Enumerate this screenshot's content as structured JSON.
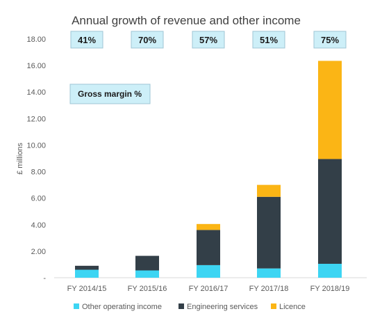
{
  "chart_data": {
    "type": "bar",
    "stacked": true,
    "title": "Annual growth of revenue and other income",
    "ylabel": "£ millions",
    "xlabel": "",
    "ylim": [
      0,
      18
    ],
    "yticks": [
      0,
      2,
      4,
      6,
      8,
      10,
      12,
      14,
      16,
      18
    ],
    "ytick_labels": [
      "-",
      "2.00",
      "4.00",
      "6.00",
      "8.00",
      "10.00",
      "12.00",
      "14.00",
      "16.00",
      "18.00"
    ],
    "categories": [
      "FY 2014/15",
      "FY 2015/16",
      "FY 2016/17",
      "FY 2017/18",
      "FY 2018/19"
    ],
    "series": [
      {
        "name": "Other operating income",
        "color": "#3dd5f3",
        "values": [
          0.6,
          0.55,
          0.95,
          0.7,
          1.05
        ]
      },
      {
        "name": "Engineering services",
        "color": "#333f48",
        "values": [
          0.3,
          1.1,
          2.65,
          5.4,
          7.9
        ]
      },
      {
        "name": "Licence",
        "color": "#fbb515",
        "values": [
          0,
          0,
          0.45,
          0.9,
          7.4
        ]
      }
    ],
    "annotations": {
      "gross_margin_label": "Gross margin %",
      "gross_margin_values": [
        "41%",
        "70%",
        "57%",
        "51%",
        "75%"
      ],
      "box_fill": "#cdeff8",
      "box_stroke": "#9fc6d4"
    },
    "grid": false,
    "legend_position": "bottom"
  }
}
